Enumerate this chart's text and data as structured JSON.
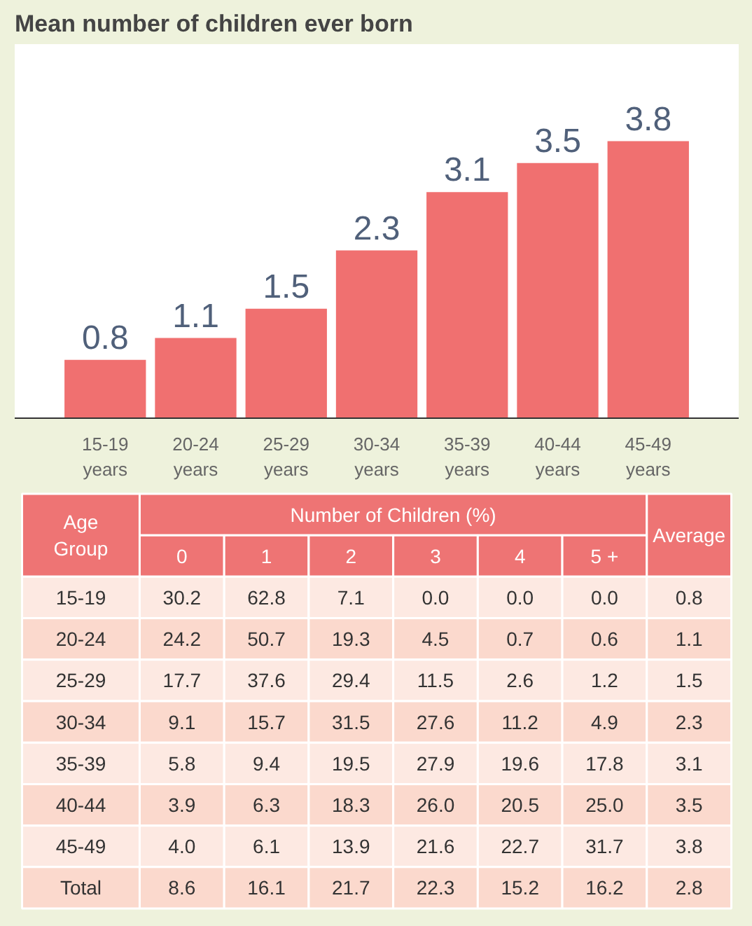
{
  "chart_data": [
    {
      "type": "bar",
      "title": "Mean number of children ever born",
      "categories": [
        "15-19 years",
        "20-24 years",
        "25-29 years",
        "30-34 years",
        "35-39 years",
        "40-44 years",
        "45-49 years"
      ],
      "values": [
        0.8,
        1.1,
        1.5,
        2.3,
        3.1,
        3.5,
        3.8
      ],
      "color": "#f07070",
      "data_labels": true
    },
    {
      "type": "heatmap",
      "xlabel": "Number of Children (%)",
      "ylabel": "Age Group",
      "categories": [
        "0",
        "1",
        "2",
        "3",
        "4",
        "5 +",
        "Average"
      ],
      "y_categories": [
        "15-19",
        "20-24",
        "25-29",
        "30-34",
        "35-39",
        "40-44",
        "45-49",
        "Total"
      ],
      "cells": [
        [
          30.2,
          62.8,
          7.1,
          0.0,
          0.0,
          0.0,
          0.8
        ],
        [
          24.2,
          50.7,
          19.3,
          4.5,
          0.7,
          0.6,
          1.1
        ],
        [
          17.7,
          37.6,
          29.4,
          11.5,
          2.6,
          1.2,
          1.5
        ],
        [
          9.1,
          15.7,
          31.5,
          27.6,
          11.2,
          4.9,
          2.3
        ],
        [
          5.8,
          9.4,
          19.5,
          27.9,
          19.6,
          17.8,
          3.1
        ],
        [
          3.9,
          6.3,
          18.3,
          26.0,
          20.5,
          25.0,
          3.5
        ],
        [
          4.0,
          6.1,
          13.9,
          21.6,
          22.7,
          31.7,
          3.8
        ],
        [
          8.6,
          16.1,
          21.7,
          22.3,
          15.2,
          16.2,
          2.8
        ]
      ],
      "cell_labels": [
        [
          "30.2",
          "62.8",
          "7.1",
          "0.0",
          "0.0",
          "0.0",
          "0.8"
        ],
        [
          "24.2",
          "50.7",
          "19.3",
          "4.5",
          "0.7",
          "0.6",
          "1.1"
        ],
        [
          "17.7",
          "37.6",
          "29.4",
          "11.5",
          "2.6",
          "1.2",
          "1.5"
        ],
        [
          "9.1",
          "15.7",
          "31.5",
          "27.6",
          "11.2",
          "4.9",
          "2.3"
        ],
        [
          "5.8",
          "9.4",
          "19.5",
          "27.9",
          "19.6",
          "17.8",
          "3.1"
        ],
        [
          "3.9",
          "6.3",
          "18.3",
          "26.0",
          "20.5",
          "25.0",
          "3.5"
        ],
        [
          "4.0",
          "6.1",
          "13.9",
          "21.6",
          "22.7",
          "31.7",
          "3.8"
        ],
        [
          "8.6",
          "16.1",
          "21.7",
          "22.3",
          "15.2",
          "16.2",
          "2.8"
        ]
      ],
      "data_labels": true
    }
  ]
}
